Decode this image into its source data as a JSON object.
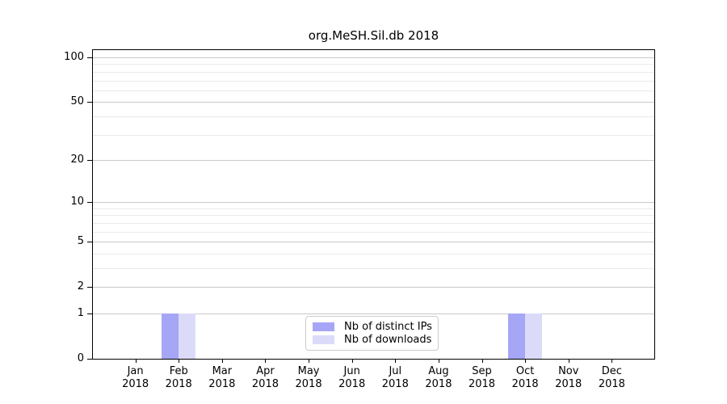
{
  "chart_data": {
    "type": "bar",
    "title": "org.MeSH.Sil.db 2018",
    "categories": [
      "Jan",
      "Feb",
      "Mar",
      "Apr",
      "May",
      "Jun",
      "Jul",
      "Aug",
      "Sep",
      "Oct",
      "Nov",
      "Dec"
    ],
    "x_year": "2018",
    "series": [
      {
        "name": "Nb of distinct IPs",
        "color": "#a6a6f6",
        "values": [
          0,
          1,
          0,
          0,
          0,
          0,
          0,
          0,
          0,
          1,
          0,
          0
        ]
      },
      {
        "name": "Nb of downloads",
        "color": "#dbdbf9",
        "values": [
          0,
          1,
          0,
          0,
          0,
          0,
          0,
          0,
          0,
          1,
          0,
          0
        ]
      }
    ],
    "yscale": "log1p",
    "yticks": [
      0,
      1,
      2,
      5,
      10,
      20,
      50,
      100
    ],
    "minor_yticks": [
      3,
      4,
      6,
      7,
      8,
      9,
      30,
      40,
      60,
      70,
      80,
      90
    ],
    "ylim": [
      0,
      112
    ],
    "grid": "horizontal",
    "legend_position": "lower center"
  },
  "colors": {
    "major_grid": "#c9c9c9",
    "minor_grid": "#eaeaea",
    "axis": "#000000",
    "text": "#000000",
    "background": "#ffffff"
  }
}
